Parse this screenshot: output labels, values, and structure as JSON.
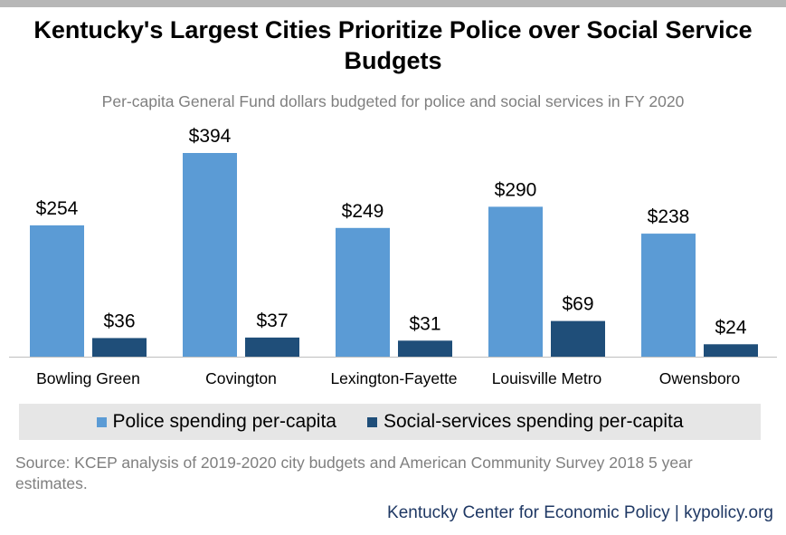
{
  "title": "Kentucky's Largest Cities Prioritize Police over Social Service Budgets",
  "subtitle": "Per-capita General Fund dollars budgeted for police and social services in FY 2020",
  "chart_data": {
    "type": "bar",
    "categories": [
      "Bowling Green",
      "Covington",
      "Lexington-Fayette",
      "Louisville Metro",
      "Owensboro"
    ],
    "series": [
      {
        "name": "Police spending per-capita",
        "values": [
          254,
          394,
          249,
          290,
          238
        ],
        "labels": [
          "$254",
          "$394",
          "$249",
          "$290",
          "$238"
        ],
        "color": "#5b9bd5"
      },
      {
        "name": "Social-services spending per-capita",
        "values": [
          36,
          37,
          31,
          69,
          24
        ],
        "labels": [
          "$36",
          "$37",
          "$31",
          "$69",
          "$24"
        ],
        "color": "#1f4e79"
      }
    ],
    "ylim": [
      0,
      394
    ],
    "grid": false,
    "legend": "bottom",
    "data_labels": true
  },
  "source": "Source: KCEP analysis of 2019-2020 city budgets and American Community Survey 2018 5 year estimates.",
  "footer": "Kentucky Center for Economic Policy | kypolicy.org"
}
